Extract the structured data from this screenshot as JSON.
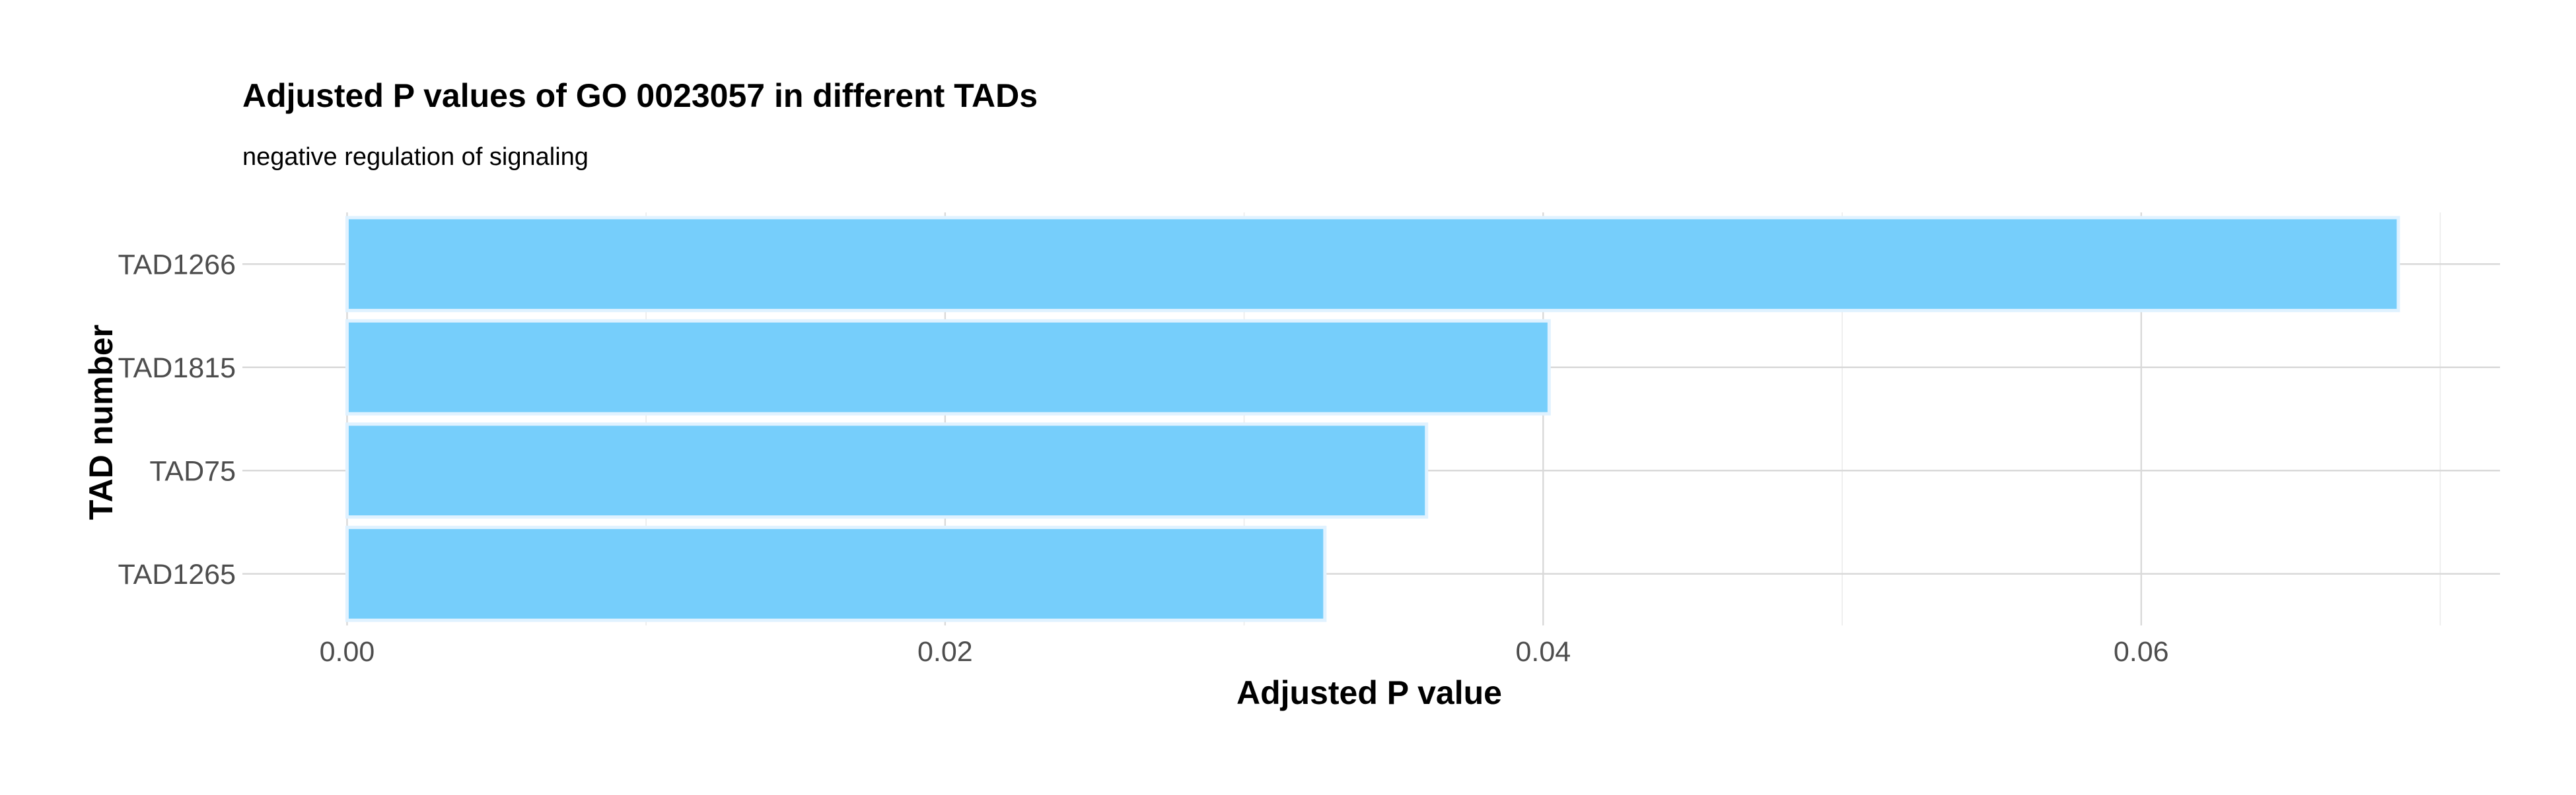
{
  "chart_data": {
    "type": "bar",
    "orientation": "horizontal",
    "title": "Adjusted P values of GO 0023057 in different TADs",
    "subtitle": "negative regulation of signaling",
    "xlabel": "Adjusted P value",
    "ylabel": "TAD number",
    "categories": [
      "TAD1266",
      "TAD1815",
      "TAD75",
      "TAD1265"
    ],
    "values": [
      0.0686,
      0.0402,
      0.0361,
      0.0327
    ],
    "xlim": [
      -0.0035,
      0.072
    ],
    "xticks": [
      0.0,
      0.02,
      0.04,
      0.06
    ],
    "xtick_labels": [
      "0.00",
      "0.02",
      "0.04",
      "0.06"
    ],
    "grid": true,
    "bar_color": "#73CDFB",
    "bar_outline_color": "#E0F2FF",
    "legend": "none"
  }
}
